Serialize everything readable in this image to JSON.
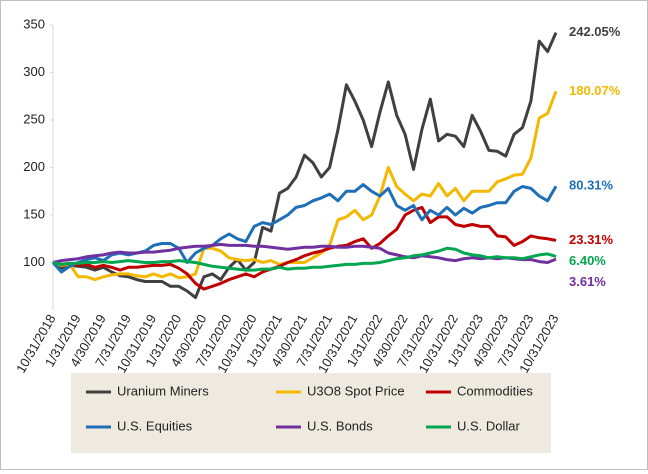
{
  "chart_data": {
    "type": "line",
    "categories": [
      "10/31/2018",
      null,
      null,
      "1/31/2019",
      null,
      null,
      "4/30/2019",
      null,
      null,
      "7/31/2019",
      null,
      null,
      "10/31/2019",
      null,
      null,
      "1/31/2020",
      null,
      null,
      "4/30/2020",
      null,
      null,
      "7/31/2020",
      null,
      null,
      "10/31/2020",
      null,
      null,
      "1/31/2021",
      null,
      null,
      "4/30/2021",
      null,
      null,
      "7/31/2021",
      null,
      null,
      "10/31/2021",
      null,
      null,
      "1/31/2022",
      null,
      null,
      "4/30/2022",
      null,
      null,
      "7/31/2022",
      null,
      null,
      "10/31/2022",
      null,
      null,
      "1/31/2023",
      null,
      null,
      "4/30/2023",
      null,
      null,
      "7/31/2023",
      null,
      null,
      "10/31/2023"
    ],
    "ylim": [
      50,
      350
    ],
    "yticks": [
      100,
      150,
      200,
      250,
      300,
      350
    ],
    "grid": false,
    "legend": "bottom",
    "series": [
      {
        "name": "Uranium Miners",
        "color": "#404040",
        "end_label": "242.05%",
        "values": [
          100,
          94,
          97,
          96,
          95,
          92,
          95,
          90,
          86,
          85,
          82,
          80,
          80,
          80,
          75,
          75,
          70,
          63,
          85,
          88,
          82,
          95,
          103,
          92,
          100,
          137,
          133,
          173,
          178,
          190,
          213,
          205,
          190,
          200,
          240,
          287,
          270,
          250,
          222,
          258,
          290,
          255,
          235,
          198,
          240,
          272,
          228,
          235,
          233,
          222,
          255,
          238,
          218,
          217,
          212,
          235,
          242,
          270,
          333,
          322,
          342.05
        ]
      },
      {
        "name": "U3O8 Spot Price",
        "color": "#f5b800",
        "end_label": "180.07%",
        "values": [
          100,
          97,
          98,
          85,
          85,
          82,
          85,
          87,
          88,
          88,
          86,
          85,
          88,
          85,
          88,
          84,
          85,
          88,
          115,
          115,
          112,
          105,
          103,
          102,
          103,
          100,
          102,
          98,
          100,
          100,
          100,
          105,
          110,
          118,
          145,
          148,
          155,
          145,
          150,
          170,
          200,
          180,
          172,
          165,
          172,
          170,
          183,
          170,
          178,
          165,
          175,
          175,
          175,
          185,
          188,
          192,
          193,
          210,
          252,
          257,
          280.07
        ]
      },
      {
        "name": "Commodities",
        "color": "#c00000",
        "end_label": "23.31%",
        "values": [
          100,
          98,
          99,
          97,
          98,
          95,
          97,
          95,
          92,
          95,
          95,
          96,
          97,
          97,
          98,
          94,
          88,
          78,
          72,
          75,
          78,
          82,
          85,
          88,
          85,
          90,
          93,
          96,
          100,
          103,
          107,
          110,
          112,
          115,
          117,
          118,
          122,
          125,
          115,
          120,
          128,
          135,
          150,
          155,
          158,
          142,
          148,
          148,
          140,
          138,
          140,
          138,
          138,
          128,
          127,
          118,
          122,
          128,
          126,
          125,
          123.31
        ]
      },
      {
        "name": "U.S. Equities",
        "color": "#1f6fb8",
        "end_label": "80.31%",
        "values": [
          100,
          90,
          96,
          100,
          103,
          105,
          102,
          108,
          110,
          108,
          110,
          112,
          118,
          120,
          120,
          115,
          100,
          110,
          115,
          118,
          125,
          130,
          125,
          122,
          138,
          142,
          140,
          145,
          150,
          158,
          160,
          165,
          168,
          172,
          165,
          175,
          175,
          182,
          175,
          170,
          178,
          160,
          155,
          160,
          145,
          155,
          150,
          158,
          150,
          157,
          152,
          158,
          160,
          163,
          163,
          175,
          180,
          178,
          170,
          165,
          180.31
        ]
      },
      {
        "name": "U.S. Bonds",
        "color": "#7030a0",
        "end_label": "3.61%",
        "values": [
          100,
          102,
          103,
          104,
          106,
          107,
          108,
          110,
          111,
          110,
          110,
          111,
          111,
          112,
          113,
          115,
          116,
          117,
          117,
          118,
          119,
          118,
          118,
          118,
          117,
          117,
          116,
          115,
          114,
          115,
          116,
          116,
          117,
          117,
          116,
          116,
          117,
          117,
          116,
          115,
          110,
          108,
          106,
          105,
          107,
          106,
          105,
          103,
          102,
          104,
          105,
          104,
          105,
          104,
          105,
          104,
          103,
          103,
          101,
          100,
          103.61
        ]
      },
      {
        "name": "U.S. Dollar",
        "color": "#00a650",
        "end_label": "6.40%",
        "values": [
          100,
          98,
          99,
          99,
          100,
          100,
          101,
          100,
          101,
          102,
          101,
          100,
          100,
          101,
          101,
          102,
          101,
          100,
          98,
          96,
          95,
          94,
          93,
          92,
          92,
          93,
          93,
          95,
          93,
          94,
          94,
          95,
          95,
          96,
          97,
          98,
          98,
          99,
          99,
          100,
          102,
          104,
          105,
          107,
          108,
          110,
          112,
          115,
          114,
          110,
          108,
          107,
          105,
          106,
          105,
          105,
          104,
          106,
          108,
          109,
          106.4
        ]
      }
    ]
  }
}
